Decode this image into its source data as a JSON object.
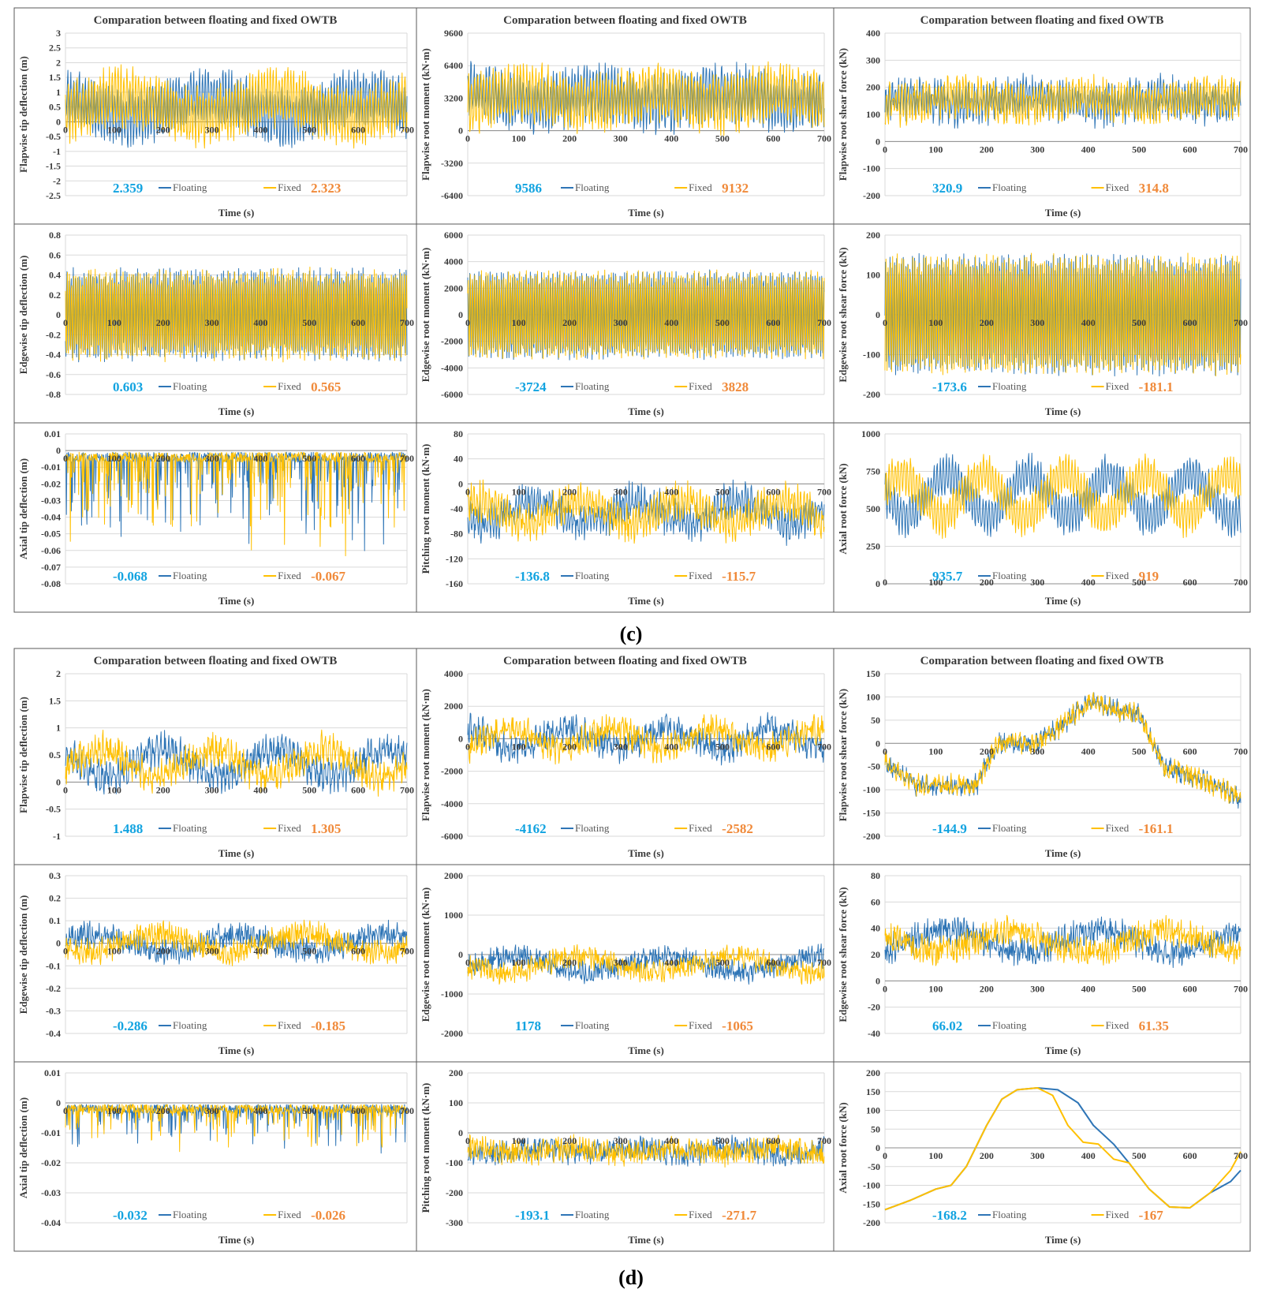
{
  "colors": {
    "floating": "#2E75B6",
    "fixed": "#FFC000",
    "floating_value": "#12A3E0",
    "fixed_value": "#F08A3A",
    "grid": "#d9d9d9",
    "border": "#595959"
  },
  "legend": {
    "floating": "Floating",
    "fixed": "Fixed"
  },
  "captions": [
    "(c)",
    "(d)"
  ],
  "chart_data": [
    {
      "id": "c1",
      "type": "line",
      "title": "Comparation  between floating and fixed OWTB",
      "ylabel": "Flapwise tip deflection (m)",
      "xlabel": "Time (s)",
      "xlim": [
        0,
        700
      ],
      "xticks": [
        "0",
        "100",
        "200",
        "300",
        "400",
        "500",
        "600",
        "700"
      ],
      "ylim": [
        -2.5,
        3
      ],
      "yticks": [
        "3",
        "2.5",
        "2",
        "1.5",
        "1",
        "0.5",
        "0",
        "-0.5",
        "-1",
        "-1.5",
        "-2",
        "-2.5"
      ],
      "floating_max": "2.359",
      "fixed_max": "2.323",
      "series": [
        {
          "name": "Floating"
        },
        {
          "name": "Fixed"
        }
      ],
      "shape": {
        "mean": 0.5,
        "amp": 0.8,
        "period": 6,
        "drift": 0.35,
        "dperiod": 320,
        "noise": 0.3
      }
    },
    {
      "id": "c2",
      "type": "line",
      "title": "Comparation between floating and fixed OWTB",
      "ylabel": "Flapwise root moment (kN·m)",
      "xlabel": "Time (s)",
      "xlim": [
        0,
        700
      ],
      "xticks": [
        "0",
        "100",
        "200",
        "300",
        "400",
        "500",
        "600",
        "700"
      ],
      "ylim": [
        -6400,
        9600
      ],
      "yticks": [
        "9600",
        "6400",
        "3200",
        "0",
        "-3200",
        "-6400"
      ],
      "floating_max": "9586",
      "fixed_max": "9132",
      "series": [
        {
          "name": "Floating"
        },
        {
          "name": "Fixed"
        }
      ],
      "shape": {
        "mean": 3200,
        "amp": 2300,
        "period": 6,
        "drift": 600,
        "dperiod": 250,
        "noise": 1000
      }
    },
    {
      "id": "c3",
      "type": "line",
      "title": "Comparation between floating and fixed OWTB",
      "ylabel": "Flapwise root shear force (kN)",
      "xlabel": "Time (s)",
      "xlim": [
        0,
        700
      ],
      "xticks": [
        "0",
        "100",
        "200",
        "300",
        "400",
        "500",
        "600",
        "700"
      ],
      "ylim": [
        -200,
        400
      ],
      "yticks": [
        "400",
        "300",
        "200",
        "100",
        "0",
        "-100",
        "-200"
      ],
      "floating_max": "320.9",
      "fixed_max": "314.8",
      "series": [
        {
          "name": "Floating"
        },
        {
          "name": "Fixed"
        }
      ],
      "shape": {
        "mean": 150,
        "amp": 55,
        "period": 6,
        "drift": 15,
        "dperiod": 250,
        "noise": 35
      }
    },
    {
      "id": "c4",
      "type": "line",
      "ylabel": "Edgewise tip deflection (m)",
      "xlabel": "Time (s)",
      "xlim": [
        0,
        700
      ],
      "xticks": [
        "0",
        "100",
        "200",
        "300",
        "400",
        "500",
        "600",
        "700"
      ],
      "ylim": [
        -0.8,
        0.8
      ],
      "yticks": [
        "0.8",
        "0.6",
        "0.4",
        "0.2",
        "0",
        "-0.2",
        "-0.4",
        "-0.6",
        "-0.8"
      ],
      "floating_max": "0.603",
      "fixed_max": "0.565",
      "series": [
        {
          "name": "Floating"
        },
        {
          "name": "Fixed"
        }
      ],
      "shape": {
        "mean": 0,
        "amp": 0.42,
        "period": 4.4,
        "drift": 0,
        "dperiod": 300,
        "noise": 0.06
      }
    },
    {
      "id": "c5",
      "type": "line",
      "ylabel": "Edgewise root moment (kN·m)",
      "xlabel": "Time (s)",
      "xlim": [
        0,
        700
      ],
      "xticks": [
        "0",
        "100",
        "200",
        "300",
        "400",
        "500",
        "600",
        "700"
      ],
      "ylim": [
        -6000,
        6000
      ],
      "yticks": [
        "6000",
        "4000",
        "2000",
        "0",
        "-2000",
        "-4000",
        "-6000"
      ],
      "floating_max": "-3724",
      "fixed_max": "3828",
      "series": [
        {
          "name": "Floating"
        },
        {
          "name": "Fixed"
        }
      ],
      "shape": {
        "mean": 0,
        "amp": 3100,
        "period": 4.4,
        "drift": 0,
        "dperiod": 300,
        "noise": 300
      }
    },
    {
      "id": "c6",
      "type": "line",
      "ylabel": "Edgewise  root shear force (kN)",
      "xlabel": "Time (s)",
      "xlim": [
        0,
        700
      ],
      "xticks": [
        "0",
        "100",
        "200",
        "300",
        "400",
        "500",
        "600",
        "700"
      ],
      "ylim": [
        -200,
        200
      ],
      "yticks": [
        "200",
        "100",
        "0",
        "-100",
        "-200"
      ],
      "floating_max": "-173.6",
      "fixed_max": "-181.1",
      "series": [
        {
          "name": "Floating"
        },
        {
          "name": "Fixed"
        }
      ],
      "shape": {
        "mean": 0,
        "amp": 140,
        "period": 4.4,
        "drift": 0,
        "dperiod": 300,
        "noise": 15
      }
    },
    {
      "id": "c7",
      "type": "line",
      "ylabel": "Axial tip deflection (m)",
      "xlabel": "Time (s)",
      "xlim": [
        0,
        700
      ],
      "xticks": [
        "0",
        "100",
        "200",
        "300",
        "400",
        "500",
        "600",
        "700"
      ],
      "ylim": [
        -0.08,
        0.01
      ],
      "yticks": [
        "0.01",
        "0",
        "-0.01",
        "-0.02",
        "-0.03",
        "-0.04",
        "-0.05",
        "-0.06",
        "-0.07",
        "-0.08"
      ],
      "floating_max": "-0.068",
      "fixed_max": "-0.067",
      "series": [
        {
          "name": "Floating"
        },
        {
          "name": "Fixed"
        }
      ],
      "shape": {
        "spiky": true,
        "base": -0.004,
        "spike": -0.045
      }
    },
    {
      "id": "c8",
      "type": "line",
      "ylabel": "Pitching root moment (kN·m)",
      "xlabel": "Time (s)",
      "xlim": [
        0,
        700
      ],
      "xticks": [
        "0",
        "100",
        "200",
        "300",
        "400",
        "500",
        "600",
        "700"
      ],
      "ylim": [
        -160,
        80
      ],
      "yticks": [
        "80",
        "40",
        "0",
        "-40",
        "-80",
        "-120",
        "-160"
      ],
      "floating_max": "-136.8",
      "fixed_max": "-115.7",
      "series": [
        {
          "name": "Floating"
        },
        {
          "name": "Fixed"
        }
      ],
      "shape": {
        "mean": -45,
        "amp": 18,
        "period": 6,
        "drift": 18,
        "dperiod": 200,
        "noise": 18
      }
    },
    {
      "id": "c9",
      "type": "line",
      "ylabel": "Axial root force (kN)",
      "xlabel": "Time (s)",
      "xlim": [
        0,
        700
      ],
      "xticks": [
        "0",
        "100",
        "200",
        "300",
        "400",
        "500",
        "600",
        "700"
      ],
      "ylim": [
        0,
        1000
      ],
      "yticks": [
        "1000",
        "750",
        "500",
        "250",
        "0"
      ],
      "floating_max": "935.7",
      "fixed_max": "919",
      "series": [
        {
          "name": "Floating"
        },
        {
          "name": "Fixed"
        }
      ],
      "shape": {
        "mean": 590,
        "amp": 110,
        "period": 6,
        "drift": 140,
        "dperiod": 160,
        "noise": 40
      }
    },
    {
      "id": "d1",
      "type": "line",
      "title": "Comparation  between floating and fixed OWTB",
      "ylabel": "Flapwise tip deflection (m)",
      "xlabel": "Time (s)",
      "xlim": [
        0,
        700
      ],
      "xticks": [
        "0",
        "100",
        "200",
        "300",
        "400",
        "500",
        "600",
        "700"
      ],
      "ylim": [
        -1,
        2
      ],
      "yticks": [
        "2",
        "1.5",
        "1",
        "0.5",
        "0",
        "-0.5",
        "-1"
      ],
      "floating_max": "1.488",
      "fixed_max": "1.305",
      "series": [
        {
          "name": "Floating"
        },
        {
          "name": "Fixed"
        }
      ],
      "shape": {
        "mean": 0.35,
        "amp": 0.15,
        "period": 8,
        "drift": 0.25,
        "dperiod": 230,
        "noise": 0.22
      }
    },
    {
      "id": "d2",
      "type": "line",
      "title": "Comparation between floating and fixed OWTB",
      "ylabel": "Flapwise root moment (kN·m)",
      "xlabel": "Time (s)",
      "xlim": [
        0,
        700
      ],
      "xticks": [
        "0",
        "100",
        "200",
        "300",
        "400",
        "500",
        "600",
        "700"
      ],
      "ylim": [
        -6000,
        4000
      ],
      "yticks": [
        "4000",
        "2000",
        "0",
        "-2000",
        "-4000",
        "-6000"
      ],
      "floating_max": "-4162",
      "fixed_max": "-2582",
      "series": [
        {
          "name": "Floating"
        },
        {
          "name": "Fixed"
        }
      ],
      "shape": {
        "mean": 0,
        "amp": 400,
        "period": 8,
        "drift": 600,
        "dperiod": 200,
        "noise": 700
      }
    },
    {
      "id": "d3",
      "type": "line",
      "title": "Comparation between floating and fixed OWTB",
      "ylabel": "Flapwise root shear force (kN)",
      "xlabel": "Time (s)",
      "xlim": [
        0,
        700
      ],
      "xticks": [
        "0",
        "100",
        "200",
        "300",
        "400",
        "500",
        "600",
        "700"
      ],
      "ylim": [
        -200,
        150
      ],
      "yticks": [
        "150",
        "100",
        "50",
        "0",
        "-50",
        "-100",
        "-150",
        "-200"
      ],
      "floating_max": "-144.9",
      "fixed_max": "-161.1",
      "series": [
        {
          "name": "Floating"
        },
        {
          "name": "Fixed"
        }
      ],
      "shape": {
        "profile": [
          [
            0,
            -40
          ],
          [
            60,
            -90
          ],
          [
            180,
            -90
          ],
          [
            220,
            0
          ],
          [
            300,
            0
          ],
          [
            350,
            40
          ],
          [
            400,
            90
          ],
          [
            500,
            60
          ],
          [
            550,
            -50
          ],
          [
            650,
            -90
          ],
          [
            700,
            -120
          ]
        ],
        "noise": 18,
        "amp": 8,
        "period": 8
      }
    },
    {
      "id": "d4",
      "type": "line",
      "ylabel": "Edgewise tip deflection (m)",
      "xlabel": "Time (s)",
      "xlim": [
        0,
        700
      ],
      "xticks": [
        "0",
        "100",
        "200",
        "300",
        "400",
        "500",
        "600",
        "700"
      ],
      "ylim": [
        -0.4,
        0.3
      ],
      "yticks": [
        "0.3",
        "0.2",
        "0.1",
        "0",
        "-0.1",
        "-0.2",
        "-0.3",
        "-0.4"
      ],
      "floating_max": "-0.286",
      "fixed_max": "-0.185",
      "series": [
        {
          "name": "Floating"
        },
        {
          "name": "Fixed"
        }
      ],
      "shape": {
        "mean": 0.0,
        "amp": 0.02,
        "period": 6,
        "drift": 0.04,
        "dperiod": 300,
        "noise": 0.045
      }
    },
    {
      "id": "d5",
      "type": "line",
      "ylabel": "Edgewise root moment (kN·m)",
      "xlabel": "Time (s)",
      "xlim": [
        0,
        700
      ],
      "xticks": [
        "0",
        "100",
        "200",
        "300",
        "400",
        "500",
        "600",
        "700"
      ],
      "ylim": [
        -2000,
        2000
      ],
      "yticks": [
        "2000",
        "1000",
        "0",
        "-1000",
        "-2000"
      ],
      "floating_max": "1178",
      "fixed_max": "-1065",
      "series": [
        {
          "name": "Floating"
        },
        {
          "name": "Fixed"
        }
      ],
      "shape": {
        "mean": -250,
        "amp": 100,
        "period": 6,
        "drift": 200,
        "dperiod": 300,
        "noise": 230
      }
    },
    {
      "id": "d6",
      "type": "line",
      "ylabel": "Edgewise root shear force (kN)",
      "xlabel": "Time (s)",
      "xlim": [
        0,
        700
      ],
      "xticks": [
        "0",
        "100",
        "200",
        "300",
        "400",
        "500",
        "600",
        "700"
      ],
      "ylim": [
        -40,
        80
      ],
      "yticks": [
        "80",
        "60",
        "40",
        "20",
        "0",
        "-20",
        "-40"
      ],
      "floating_max": "66.02",
      "fixed_max": "61.35",
      "series": [
        {
          "name": "Floating"
        },
        {
          "name": "Fixed"
        }
      ],
      "shape": {
        "mean": 30,
        "amp": 4,
        "period": 6,
        "drift": 8,
        "dperiod": 300,
        "noise": 9
      }
    },
    {
      "id": "d7",
      "type": "line",
      "ylabel": "Axial tip deflection (m)",
      "xlabel": "Time (s)",
      "xlim": [
        0,
        700
      ],
      "xticks": [
        "0",
        "100",
        "200",
        "300",
        "400",
        "500",
        "600",
        "700"
      ],
      "ylim": [
        -0.04,
        0.01
      ],
      "yticks": [
        "0.01",
        "0",
        "-0.01",
        "-0.02",
        "-0.03",
        "-0.04"
      ],
      "floating_max": "-0.032",
      "fixed_max": "-0.026",
      "series": [
        {
          "name": "Floating"
        },
        {
          "name": "Fixed"
        }
      ],
      "shape": {
        "spiky": true,
        "base": -0.002,
        "spike": -0.012
      }
    },
    {
      "id": "d8",
      "type": "line",
      "ylabel": "Pitching root moment (kN·m)",
      "xlabel": "Time (s)",
      "xlim": [
        0,
        700
      ],
      "xticks": [
        "0",
        "100",
        "200",
        "300",
        "400",
        "500",
        "600",
        "700"
      ],
      "ylim": [
        -300,
        200
      ],
      "yticks": [
        "200",
        "100",
        "0",
        "-100",
        "-200",
        "-300"
      ],
      "floating_max": "-193.1",
      "fixed_max": "-271.7",
      "series": [
        {
          "name": "Floating"
        },
        {
          "name": "Fixed"
        }
      ],
      "shape": {
        "mean": -60,
        "amp": 10,
        "period": 6,
        "drift": 10,
        "dperiod": 200,
        "noise": 35
      }
    },
    {
      "id": "d9",
      "type": "line",
      "ylabel": "Axial root force (kN)",
      "xlabel": "Time (s)",
      "xlim": [
        0,
        700
      ],
      "xticks": [
        "0",
        "100",
        "200",
        "300",
        "400",
        "500",
        "600",
        "700"
      ],
      "ylim": [
        -200,
        200
      ],
      "yticks": [
        "200",
        "150",
        "100",
        "50",
        "0",
        "-50",
        "-100",
        "-150",
        "-200"
      ],
      "floating_max": "-168.2",
      "fixed_max": "-167",
      "series": [
        {
          "name": "Floating",
          "points": [
            [
              0,
              -165
            ],
            [
              50,
              -140
            ],
            [
              100,
              -110
            ],
            [
              130,
              -100
            ],
            [
              160,
              -50
            ],
            [
              200,
              60
            ],
            [
              230,
              130
            ],
            [
              260,
              155
            ],
            [
              300,
              160
            ],
            [
              340,
              155
            ],
            [
              380,
              120
            ],
            [
              410,
              60
            ],
            [
              450,
              10
            ],
            [
              480,
              -40
            ],
            [
              520,
              -110
            ],
            [
              560,
              -158
            ],
            [
              600,
              -160
            ],
            [
              640,
              -120
            ],
            [
              680,
              -90
            ],
            [
              700,
              -60
            ]
          ]
        },
        {
          "name": "Fixed",
          "points": [
            [
              0,
              -165
            ],
            [
              50,
              -140
            ],
            [
              100,
              -110
            ],
            [
              130,
              -100
            ],
            [
              160,
              -50
            ],
            [
              200,
              60
            ],
            [
              230,
              130
            ],
            [
              260,
              155
            ],
            [
              300,
              160
            ],
            [
              330,
              140
            ],
            [
              360,
              60
            ],
            [
              390,
              15
            ],
            [
              420,
              10
            ],
            [
              450,
              -30
            ],
            [
              480,
              -40
            ],
            [
              520,
              -110
            ],
            [
              560,
              -158
            ],
            [
              600,
              -160
            ],
            [
              640,
              -120
            ],
            [
              680,
              -60
            ],
            [
              700,
              -10
            ]
          ]
        }
      ]
    }
  ]
}
